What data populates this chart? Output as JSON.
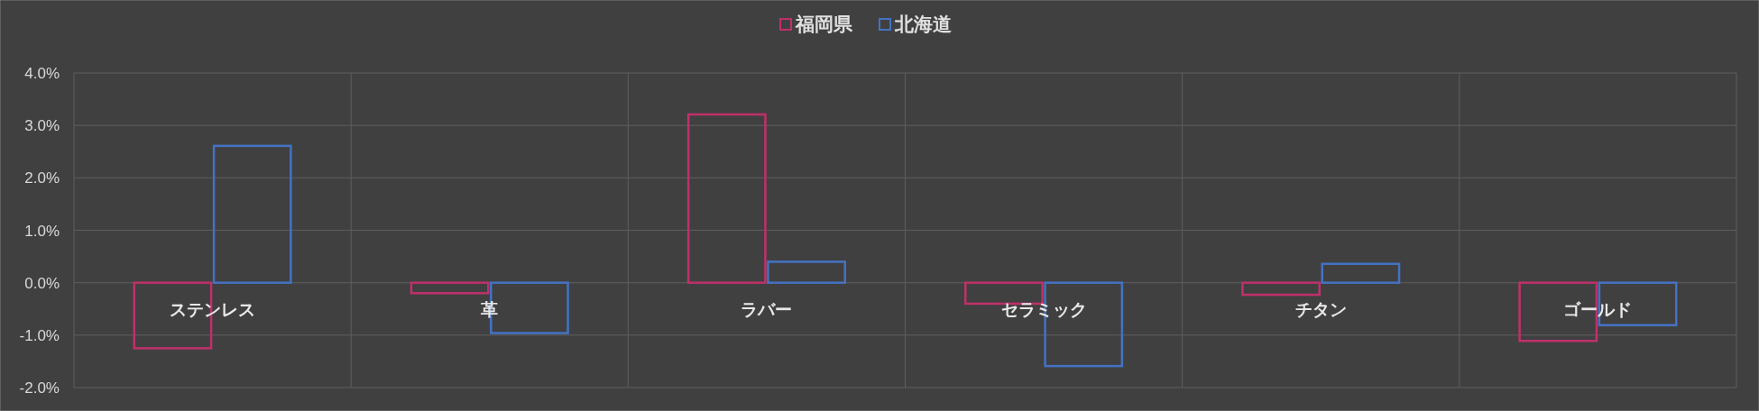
{
  "chart_data": {
    "type": "bar",
    "categories": [
      "ステンレス",
      "革",
      "ラバー",
      "セラミック",
      "チタン",
      "ゴールド"
    ],
    "series": [
      {
        "name": "福岡県",
        "color": "#c0306a",
        "values": [
          -1.25,
          -0.2,
          3.21,
          -0.4,
          -0.23,
          -1.11
        ]
      },
      {
        "name": "北海道",
        "color": "#4472c4",
        "values": [
          2.61,
          -0.96,
          0.4,
          -1.59,
          0.36,
          -0.81
        ]
      }
    ],
    "ylim": [
      -2,
      4
    ],
    "yticks": [
      {
        "value": -2,
        "label": "-2.0%"
      },
      {
        "value": -1,
        "label": "-1.0%"
      },
      {
        "value": 0,
        "label": "0.0%"
      },
      {
        "value": 1,
        "label": "1.0%"
      },
      {
        "value": 2,
        "label": "2.0%"
      },
      {
        "value": 3,
        "label": "3.0%"
      },
      {
        "value": 4,
        "label": "4.0%"
      }
    ],
    "grid": true,
    "legend": "top"
  }
}
